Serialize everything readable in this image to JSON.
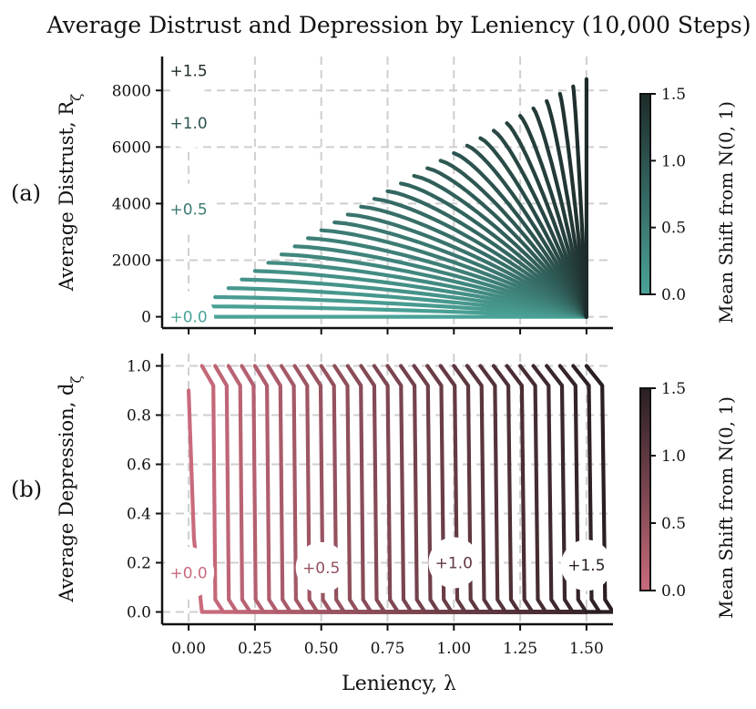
{
  "title": "Average Distrust and Depression by Leniency (10,000 Steps)",
  "xlabel": "Leniency, λ",
  "chart_data": [
    {
      "type": "line",
      "panel_label": "(a)",
      "title": "Average Distrust and Depression by Leniency (10,000 Steps)",
      "xlabel": "Leniency, λ",
      "ylabel": "Average Distrust, R",
      "ylabel_sub": "ζ",
      "xlim": [
        -0.1,
        1.6
      ],
      "ylim": [
        -400,
        9200
      ],
      "xticks": [
        0.0,
        0.25,
        0.5,
        0.75,
        1.0,
        1.25,
        1.5
      ],
      "xtick_labels": [
        "0.00",
        "0.25",
        "0.50",
        "0.75",
        "1.00",
        "1.25",
        "1.50"
      ],
      "yticks": [
        0,
        2000,
        4000,
        6000,
        8000
      ],
      "ytick_labels": [
        "0",
        "2000",
        "4000",
        "6000",
        "8000"
      ],
      "grid": true,
      "series_family": {
        "description": "31 curves, one per mean shift from 0.0 to 1.5 in steps of 0.05; curve with shift s starts at λ = s",
        "shift_start": 0.0,
        "shift_end": 1.5,
        "shift_step": 0.05,
        "end_x": 1.5,
        "end_y": 0,
        "max_y": 8400
      },
      "contour_labels": [
        {
          "text": "+1.5",
          "shift": 1.5,
          "x": 0.0,
          "y": 8700
        },
        {
          "text": "+1.0",
          "shift": 1.0,
          "x": 0.0,
          "y": 6850
        },
        {
          "text": "+0.5",
          "shift": 0.5,
          "x": 0.0,
          "y": 3800
        },
        {
          "text": "+0.0",
          "shift": 0.0,
          "x": 0.0,
          "y": 0
        }
      ],
      "colorbar": {
        "label": "Mean Shift from N(0, 1)",
        "ticks": [
          "0.0",
          "0.5",
          "1.0",
          "1.5"
        ],
        "tick_values": [
          0.0,
          0.5,
          1.0,
          1.5
        ],
        "color_low": "#4ba398",
        "color_high": "#1d2b2a"
      }
    },
    {
      "type": "line",
      "panel_label": "(b)",
      "xlabel": "Leniency, λ",
      "ylabel": "Average Depression, d",
      "ylabel_sub": "ζ",
      "xlim": [
        -0.1,
        1.6
      ],
      "ylim": [
        -0.05,
        1.05
      ],
      "xticks": [
        0.0,
        0.25,
        0.5,
        0.75,
        1.0,
        1.25,
        1.5
      ],
      "xtick_labels": [
        "0.00",
        "0.25",
        "0.50",
        "0.75",
        "1.00",
        "1.25",
        "1.50"
      ],
      "yticks": [
        0.0,
        0.2,
        0.4,
        0.6,
        0.8,
        1.0
      ],
      "ytick_labels": [
        "0.0",
        "0.2",
        "0.4",
        "0.6",
        "0.8",
        "1.0"
      ],
      "grid": true,
      "series_family": {
        "description": "31 curves, one per mean shift from 0.0 to 1.5 in steps of 0.05; each stays near 1.0 then drops to ~0 within about 0.05 of λ above its shift",
        "shift_start": 0.0,
        "shift_end": 1.5,
        "shift_step": 0.05,
        "high_y": 1.0,
        "low_y": 0.0
      },
      "contour_labels": [
        {
          "text": "+0.0",
          "shift": 0.0,
          "x": 0.0,
          "y": 0.16
        },
        {
          "text": "+0.5",
          "shift": 0.5,
          "x": 0.5,
          "y": 0.18
        },
        {
          "text": "+1.0",
          "shift": 1.0,
          "x": 1.0,
          "y": 0.2
        },
        {
          "text": "+1.5",
          "shift": 1.5,
          "x": 1.5,
          "y": 0.19
        }
      ],
      "colorbar": {
        "label": "Mean Shift from N(0, 1)",
        "ticks": [
          "0.0",
          "0.5",
          "1.0",
          "1.5"
        ],
        "tick_values": [
          0.0,
          0.5,
          1.0,
          1.5
        ],
        "color_low": "#c96a7c",
        "color_high": "#2a1f22"
      }
    }
  ]
}
